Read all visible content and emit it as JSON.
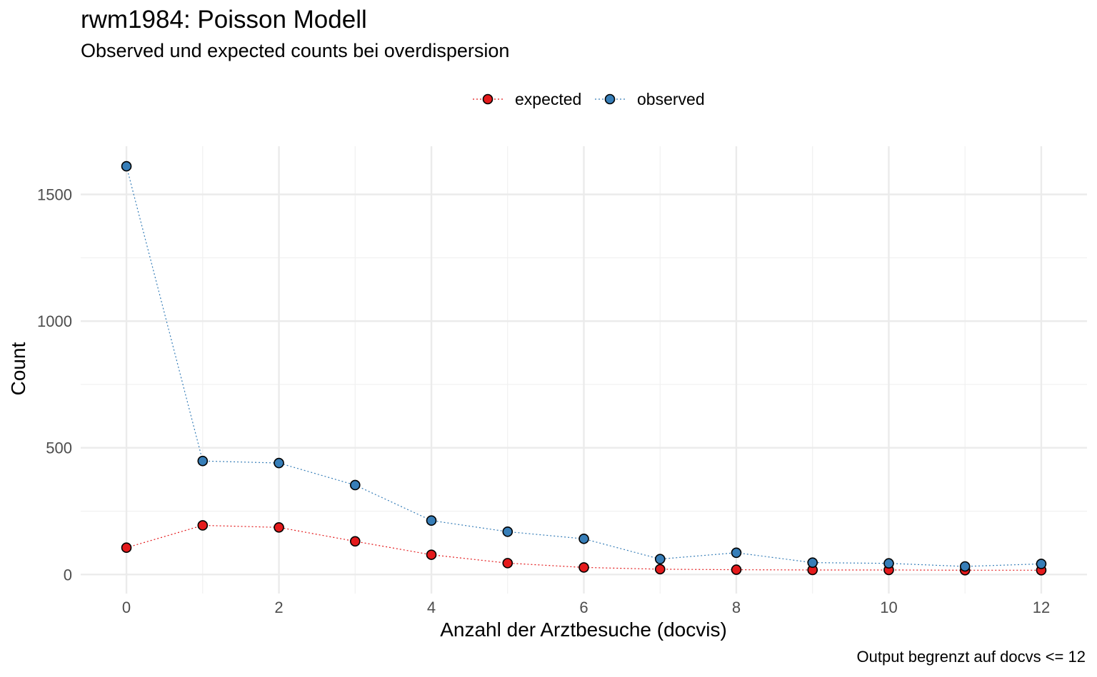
{
  "chart_data": {
    "type": "line",
    "title": "rwm1984: Poisson Modell",
    "subtitle": "Observed und expected counts bei overdispersion",
    "xlabel": "Anzahl der Arztbesuche (docvis)",
    "ylabel": "Count",
    "caption": "Output begrenzt auf docvs <= 12",
    "x": [
      0,
      1,
      2,
      3,
      4,
      5,
      6,
      7,
      8,
      9,
      10,
      11,
      12
    ],
    "xlim": [
      -0.6,
      12.6
    ],
    "ylim": [
      -75,
      1690
    ],
    "x_ticks": [
      0,
      2,
      4,
      6,
      8,
      10,
      12
    ],
    "x_tick_labels": [
      "0",
      "2",
      "4",
      "6",
      "8",
      "10",
      "12"
    ],
    "y_ticks": [
      0,
      500,
      1000,
      1500
    ],
    "y_tick_labels": [
      "0",
      "500",
      "1000",
      "1500"
    ],
    "grid": true,
    "legend_position": "top",
    "series": [
      {
        "name": "expected",
        "color": "#e41a1c",
        "values": [
          106,
          194,
          186,
          131,
          78,
          45,
          28,
          21,
          19,
          18,
          18,
          17,
          17
        ]
      },
      {
        "name": "observed",
        "color": "#377eb8",
        "values": [
          1611,
          448,
          440,
          353,
          213,
          169,
          141,
          61,
          86,
          47,
          44,
          32,
          42
        ]
      }
    ]
  }
}
